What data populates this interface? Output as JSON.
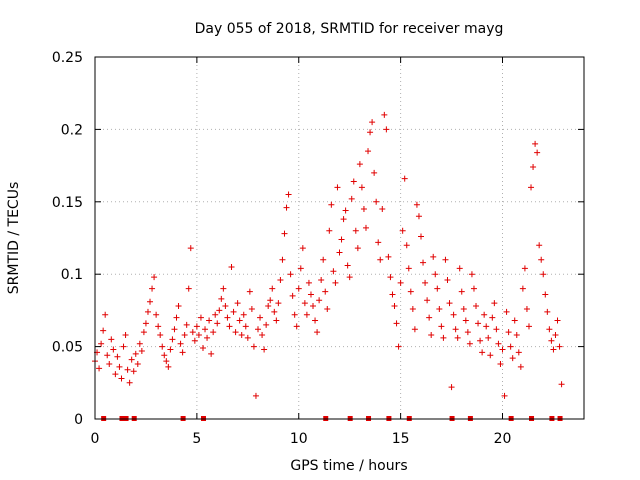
{
  "chart_data": {
    "type": "scatter",
    "title": "Day 055 of 2018, SRMTID for receiver mayg",
    "xlabel": "GPS time / hours",
    "ylabel": "SRMTID / TECUs",
    "xlim": [
      0,
      24
    ],
    "ylim": [
      0,
      0.25
    ],
    "xticks": [
      0,
      5,
      10,
      15,
      20
    ],
    "xtick_labels": [
      "0",
      "5",
      "10",
      "15",
      "20"
    ],
    "yticks": [
      0,
      0.05,
      0.1,
      0.15,
      0.2,
      0.25
    ],
    "ytick_labels": [
      "0",
      "0.05",
      "0.1",
      "0.15",
      "0.2",
      "0.25"
    ],
    "grid": true,
    "marker": "+",
    "color": "#e00000",
    "series": [
      {
        "name": "SRMTID",
        "points": [
          [
            0.0,
            0.04
          ],
          [
            0.1,
            0.046
          ],
          [
            0.2,
            0.035
          ],
          [
            0.3,
            0.052
          ],
          [
            0.4,
            0.061
          ],
          [
            0.5,
            0.072
          ],
          [
            0.6,
            0.044
          ],
          [
            0.7,
            0.038
          ],
          [
            0.8,
            0.055
          ],
          [
            0.9,
            0.048
          ],
          [
            1.0,
            0.031
          ],
          [
            1.1,
            0.043
          ],
          [
            1.2,
            0.036
          ],
          [
            1.3,
            0.028
          ],
          [
            1.4,
            0.05
          ],
          [
            1.5,
            0.058
          ],
          [
            1.6,
            0.034
          ],
          [
            1.7,
            0.025
          ],
          [
            1.8,
            0.041
          ],
          [
            1.9,
            0.033
          ],
          [
            2.0,
            0.045
          ],
          [
            2.1,
            0.038
          ],
          [
            2.2,
            0.052
          ],
          [
            2.3,
            0.047
          ],
          [
            2.4,
            0.06
          ],
          [
            2.5,
            0.066
          ],
          [
            2.6,
            0.074
          ],
          [
            2.7,
            0.081
          ],
          [
            2.8,
            0.09
          ],
          [
            2.9,
            0.098
          ],
          [
            3.0,
            0.072
          ],
          [
            3.1,
            0.064
          ],
          [
            3.2,
            0.058
          ],
          [
            3.3,
            0.05
          ],
          [
            3.4,
            0.044
          ],
          [
            3.5,
            0.04
          ],
          [
            3.6,
            0.036
          ],
          [
            3.7,
            0.048
          ],
          [
            3.8,
            0.055
          ],
          [
            3.9,
            0.062
          ],
          [
            4.0,
            0.07
          ],
          [
            4.1,
            0.078
          ],
          [
            4.2,
            0.052
          ],
          [
            4.3,
            0.046
          ],
          [
            4.4,
            0.058
          ],
          [
            4.5,
            0.065
          ],
          [
            4.6,
            0.09
          ],
          [
            4.7,
            0.118
          ],
          [
            4.8,
            0.06
          ],
          [
            4.9,
            0.054
          ],
          [
            5.0,
            0.064
          ],
          [
            5.1,
            0.058
          ],
          [
            5.2,
            0.07
          ],
          [
            5.3,
            0.049
          ],
          [
            5.4,
            0.062
          ],
          [
            5.5,
            0.056
          ],
          [
            5.6,
            0.068
          ],
          [
            5.7,
            0.045
          ],
          [
            5.8,
            0.06
          ],
          [
            5.9,
            0.072
          ],
          [
            6.0,
            0.066
          ],
          [
            6.1,
            0.075
          ],
          [
            6.2,
            0.083
          ],
          [
            6.3,
            0.09
          ],
          [
            6.4,
            0.078
          ],
          [
            6.5,
            0.07
          ],
          [
            6.6,
            0.064
          ],
          [
            6.7,
            0.105
          ],
          [
            6.8,
            0.074
          ],
          [
            6.9,
            0.06
          ],
          [
            7.0,
            0.08
          ],
          [
            7.1,
            0.068
          ],
          [
            7.2,
            0.058
          ],
          [
            7.3,
            0.072
          ],
          [
            7.4,
            0.064
          ],
          [
            7.5,
            0.056
          ],
          [
            7.6,
            0.088
          ],
          [
            7.7,
            0.076
          ],
          [
            7.8,
            0.05
          ],
          [
            7.9,
            0.016
          ],
          [
            8.0,
            0.062
          ],
          [
            8.1,
            0.07
          ],
          [
            8.2,
            0.058
          ],
          [
            8.3,
            0.048
          ],
          [
            8.4,
            0.065
          ],
          [
            8.5,
            0.078
          ],
          [
            8.6,
            0.082
          ],
          [
            8.7,
            0.09
          ],
          [
            8.8,
            0.074
          ],
          [
            8.9,
            0.068
          ],
          [
            9.0,
            0.08
          ],
          [
            9.1,
            0.096
          ],
          [
            9.2,
            0.11
          ],
          [
            9.3,
            0.128
          ],
          [
            9.4,
            0.146
          ],
          [
            9.5,
            0.155
          ],
          [
            9.6,
            0.1
          ],
          [
            9.7,
            0.085
          ],
          [
            9.8,
            0.072
          ],
          [
            9.9,
            0.064
          ],
          [
            10.0,
            0.09
          ],
          [
            10.1,
            0.104
          ],
          [
            10.2,
            0.118
          ],
          [
            10.3,
            0.08
          ],
          [
            10.4,
            0.072
          ],
          [
            10.5,
            0.094
          ],
          [
            10.6,
            0.086
          ],
          [
            10.7,
            0.078
          ],
          [
            10.8,
            0.068
          ],
          [
            10.9,
            0.06
          ],
          [
            11.0,
            0.082
          ],
          [
            11.1,
            0.096
          ],
          [
            11.2,
            0.11
          ],
          [
            11.3,
            0.088
          ],
          [
            11.4,
            0.076
          ],
          [
            11.5,
            0.13
          ],
          [
            11.6,
            0.148
          ],
          [
            11.7,
            0.102
          ],
          [
            11.8,
            0.094
          ],
          [
            11.9,
            0.16
          ],
          [
            12.0,
            0.115
          ],
          [
            12.1,
            0.124
          ],
          [
            12.2,
            0.138
          ],
          [
            12.3,
            0.144
          ],
          [
            12.4,
            0.106
          ],
          [
            12.5,
            0.098
          ],
          [
            12.6,
            0.152
          ],
          [
            12.7,
            0.164
          ],
          [
            12.8,
            0.13
          ],
          [
            12.9,
            0.118
          ],
          [
            13.0,
            0.176
          ],
          [
            13.1,
            0.16
          ],
          [
            13.2,
            0.145
          ],
          [
            13.3,
            0.132
          ],
          [
            13.4,
            0.185
          ],
          [
            13.5,
            0.198
          ],
          [
            13.6,
            0.205
          ],
          [
            13.7,
            0.17
          ],
          [
            13.8,
            0.15
          ],
          [
            13.9,
            0.122
          ],
          [
            14.0,
            0.11
          ],
          [
            14.1,
            0.145
          ],
          [
            14.2,
            0.21
          ],
          [
            14.3,
            0.2
          ],
          [
            14.4,
            0.112
          ],
          [
            14.5,
            0.098
          ],
          [
            14.6,
            0.086
          ],
          [
            14.7,
            0.078
          ],
          [
            14.8,
            0.066
          ],
          [
            14.9,
            0.05
          ],
          [
            15.0,
            0.094
          ],
          [
            15.1,
            0.13
          ],
          [
            15.2,
            0.166
          ],
          [
            15.3,
            0.12
          ],
          [
            15.4,
            0.104
          ],
          [
            15.5,
            0.088
          ],
          [
            15.6,
            0.076
          ],
          [
            15.7,
            0.062
          ],
          [
            15.8,
            0.148
          ],
          [
            15.9,
            0.14
          ],
          [
            16.0,
            0.126
          ],
          [
            16.1,
            0.108
          ],
          [
            16.2,
            0.094
          ],
          [
            16.3,
            0.082
          ],
          [
            16.4,
            0.07
          ],
          [
            16.5,
            0.058
          ],
          [
            16.6,
            0.112
          ],
          [
            16.7,
            0.1
          ],
          [
            16.8,
            0.09
          ],
          [
            16.9,
            0.076
          ],
          [
            17.0,
            0.064
          ],
          [
            17.1,
            0.056
          ],
          [
            17.2,
            0.11
          ],
          [
            17.3,
            0.096
          ],
          [
            17.4,
            0.08
          ],
          [
            17.5,
            0.022
          ],
          [
            17.6,
            0.072
          ],
          [
            17.7,
            0.062
          ],
          [
            17.8,
            0.056
          ],
          [
            17.9,
            0.104
          ],
          [
            18.0,
            0.088
          ],
          [
            18.1,
            0.076
          ],
          [
            18.2,
            0.068
          ],
          [
            18.3,
            0.06
          ],
          [
            18.4,
            0.052
          ],
          [
            18.5,
            0.1
          ],
          [
            18.6,
            0.09
          ],
          [
            18.7,
            0.078
          ],
          [
            18.8,
            0.066
          ],
          [
            18.9,
            0.054
          ],
          [
            19.0,
            0.046
          ],
          [
            19.1,
            0.072
          ],
          [
            19.2,
            0.064
          ],
          [
            19.3,
            0.056
          ],
          [
            19.4,
            0.044
          ],
          [
            19.5,
            0.07
          ],
          [
            19.6,
            0.08
          ],
          [
            19.7,
            0.062
          ],
          [
            19.8,
            0.052
          ],
          [
            19.9,
            0.038
          ],
          [
            20.0,
            0.048
          ],
          [
            20.1,
            0.016
          ],
          [
            20.2,
            0.074
          ],
          [
            20.3,
            0.06
          ],
          [
            20.4,
            0.05
          ],
          [
            20.5,
            0.042
          ],
          [
            20.6,
            0.068
          ],
          [
            20.7,
            0.058
          ],
          [
            20.8,
            0.046
          ],
          [
            20.9,
            0.036
          ],
          [
            21.0,
            0.09
          ],
          [
            21.1,
            0.104
          ],
          [
            21.2,
            0.076
          ],
          [
            21.3,
            0.064
          ],
          [
            21.4,
            0.16
          ],
          [
            21.5,
            0.174
          ],
          [
            21.6,
            0.19
          ],
          [
            21.7,
            0.184
          ],
          [
            21.8,
            0.12
          ],
          [
            21.9,
            0.11
          ],
          [
            22.0,
            0.1
          ],
          [
            22.1,
            0.086
          ],
          [
            22.2,
            0.074
          ],
          [
            22.3,
            0.062
          ],
          [
            22.4,
            0.054
          ],
          [
            22.5,
            0.048
          ],
          [
            22.6,
            0.058
          ],
          [
            22.7,
            0.068
          ],
          [
            22.8,
            0.05
          ],
          [
            22.9,
            0.024
          ]
        ]
      }
    ],
    "zero_markers_x": [
      0.4,
      1.3,
      1.5,
      1.9,
      4.3,
      5.3,
      11.3,
      12.5,
      13.4,
      14.4,
      15.4,
      17.5,
      18.4,
      20.4,
      21.4,
      22.4,
      22.8
    ]
  }
}
